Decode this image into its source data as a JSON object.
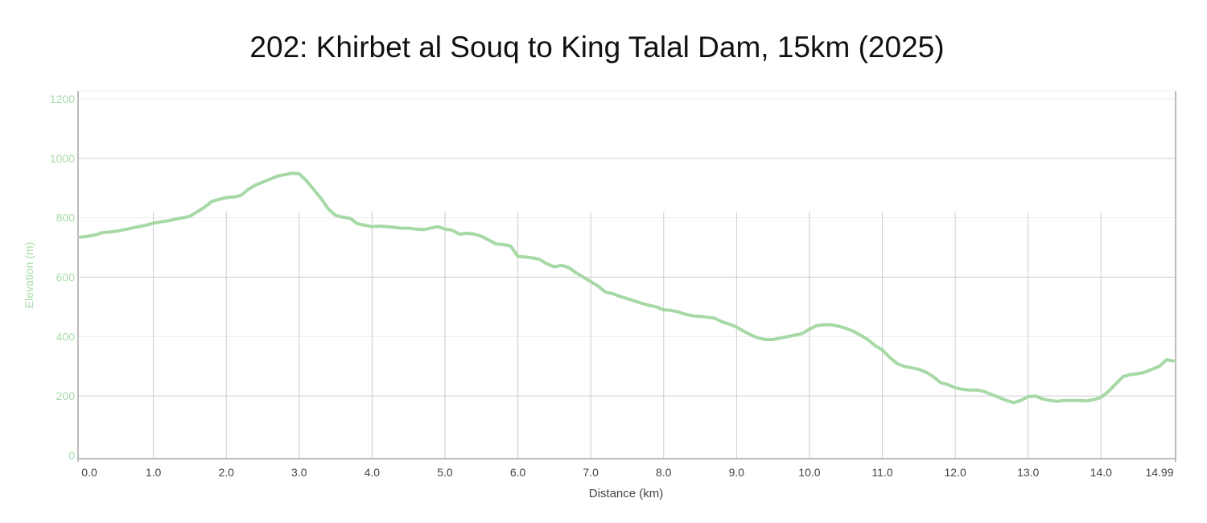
{
  "chart_data": {
    "type": "line",
    "title": "202: Khirbet al Souq to King Talal Dam, 15km (2025)",
    "xlabel": "Distance (km)",
    "ylabel": "Elevation (m)",
    "xlim": [
      0,
      14.99
    ],
    "ylim": [
      0,
      1200
    ],
    "x_ticks": [
      "0.0",
      "1.0",
      "2.0",
      "3.0",
      "4.0",
      "5.0",
      "6.0",
      "7.0",
      "8.0",
      "9.0",
      "10.0",
      "11.0",
      "12.0",
      "13.0",
      "14.0",
      "14.99"
    ],
    "x_tick_values": [
      0,
      1,
      2,
      3,
      4,
      5,
      6,
      7,
      8,
      9,
      10,
      11,
      12,
      13,
      14,
      14.99
    ],
    "y_ticks": [
      "0",
      "200",
      "400",
      "600",
      "800",
      "1000",
      "1200"
    ],
    "y_tick_values": [
      0,
      200,
      400,
      600,
      800,
      1000,
      1200
    ],
    "series_color": "#a6d9a6",
    "grid": true,
    "series": [
      {
        "x": [
          0,
          0.1,
          0.2,
          0.3,
          0.4,
          0.5,
          0.6,
          0.7,
          0.8,
          0.9,
          1.0,
          1.1,
          1.2,
          1.3,
          1.4,
          1.5,
          1.6,
          1.7,
          1.8,
          1.9,
          2.0,
          2.1,
          2.2,
          2.3,
          2.4,
          2.5,
          2.6,
          2.7,
          2.8,
          2.9,
          3.0,
          3.1,
          3.2,
          3.3,
          3.4,
          3.5,
          3.6,
          3.7,
          3.8,
          3.9,
          4.0,
          4.1,
          4.2,
          4.3,
          4.4,
          4.5,
          4.6,
          4.7,
          4.8,
          4.9,
          5.0,
          5.1,
          5.2,
          5.3,
          5.4,
          5.5,
          5.6,
          5.7,
          5.8,
          5.9,
          6.0,
          6.1,
          6.2,
          6.3,
          6.4,
          6.5,
          6.6,
          6.7,
          6.8,
          6.9,
          7.0,
          7.1,
          7.2,
          7.3,
          7.4,
          7.5,
          7.6,
          7.7,
          7.8,
          7.9,
          8.0,
          8.1,
          8.2,
          8.3,
          8.4,
          8.5,
          8.6,
          8.7,
          8.8,
          8.9,
          9.0,
          9.1,
          9.2,
          9.3,
          9.4,
          9.5,
          9.6,
          9.7,
          9.8,
          9.9,
          10.0,
          10.1,
          10.2,
          10.3,
          10.4,
          10.5,
          10.6,
          10.7,
          10.8,
          10.9,
          11.0,
          11.1,
          11.2,
          11.3,
          11.4,
          11.5,
          11.6,
          11.7,
          11.8,
          11.9,
          12.0,
          12.1,
          12.2,
          12.3,
          12.4,
          12.5,
          12.6,
          12.7,
          12.8,
          12.9,
          13.0,
          13.1,
          13.2,
          13.3,
          13.4,
          13.5,
          13.6,
          13.7,
          13.8,
          13.9,
          14.0,
          14.1,
          14.2,
          14.3,
          14.4,
          14.5,
          14.6,
          14.7,
          14.8,
          14.9,
          14.99
        ],
        "y": [
          735,
          738,
          742,
          750,
          752,
          755,
          760,
          765,
          770,
          775,
          782,
          786,
          790,
          795,
          800,
          805,
          820,
          835,
          855,
          862,
          868,
          870,
          875,
          895,
          910,
          920,
          930,
          940,
          945,
          950,
          948,
          925,
          895,
          865,
          830,
          808,
          802,
          798,
          780,
          775,
          770,
          772,
          770,
          768,
          765,
          765,
          762,
          760,
          765,
          770,
          762,
          758,
          745,
          748,
          745,
          738,
          725,
          712,
          710,
          705,
          670,
          668,
          665,
          660,
          645,
          635,
          640,
          632,
          615,
          600,
          585,
          570,
          550,
          545,
          535,
          528,
          520,
          512,
          505,
          500,
          490,
          488,
          483,
          475,
          470,
          468,
          465,
          462,
          450,
          442,
          432,
          418,
          405,
          395,
          390,
          390,
          395,
          400,
          405,
          410,
          425,
          437,
          440,
          440,
          435,
          428,
          418,
          405,
          390,
          370,
          355,
          330,
          310,
          300,
          295,
          290,
          280,
          265,
          245,
          238,
          228,
          222,
          220,
          220,
          215,
          205,
          195,
          185,
          178,
          185,
          198,
          200,
          190,
          185,
          182,
          185,
          185,
          185,
          183,
          188,
          195,
          215,
          240,
          265,
          272,
          275,
          280,
          290,
          300,
          322,
          318
        ]
      }
    ]
  }
}
